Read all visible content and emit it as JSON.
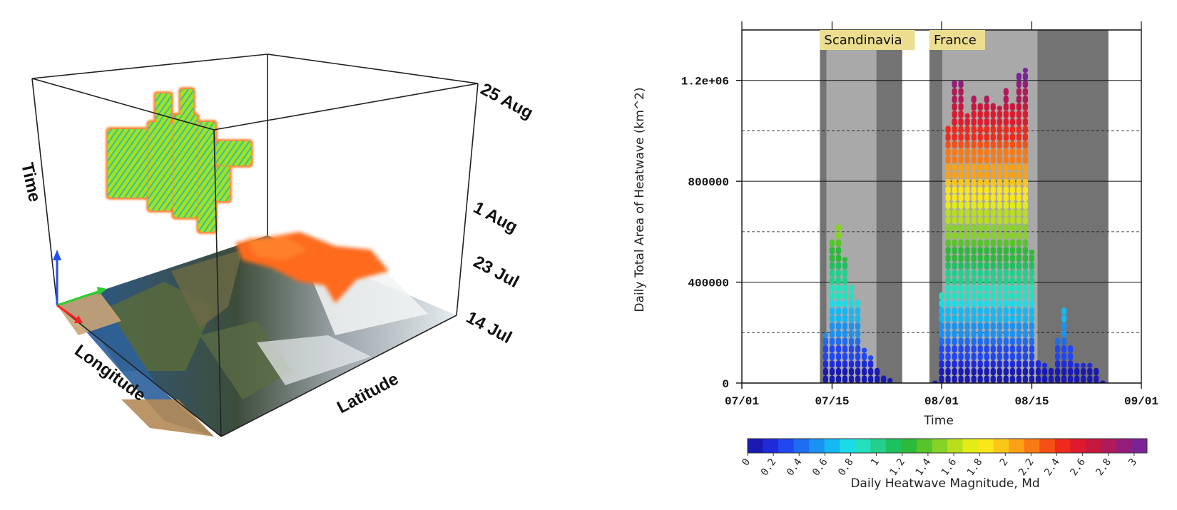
{
  "cube": {
    "axis_labels": {
      "time": "Time",
      "longitude": "Longitude",
      "latitude": "Latitude"
    },
    "time_ticks": [
      "25 Aug",
      "1 Aug",
      "23 Jul",
      "14 Jul"
    ]
  },
  "chart_data": {
    "type": "bar",
    "title": "",
    "xlabel": "Time",
    "ylabel": "Daily Total Area of Heatwave (km^2)",
    "x_tick_labels": [
      "07/01",
      "07/15",
      "08/01",
      "08/15",
      "09/01"
    ],
    "x_range": [
      "07/01",
      "09/01"
    ],
    "y_tick_labels": [
      "0",
      "400000",
      "800000",
      "1.2e+06"
    ],
    "ylim": [
      0,
      1400000
    ],
    "grid": "horizontal solid at 400000 intervals, dashed at 200000, 600000, 1000000",
    "regions": [
      {
        "name": "Scandinavia",
        "start": "07/14",
        "end": "07/25",
        "highlight": [
          "07/15",
          "07/21"
        ]
      },
      {
        "name": "France",
        "start": "07/31",
        "end": "08/26",
        "highlight": [
          "08/02",
          "08/15"
        ]
      }
    ],
    "days": [
      "07/14",
      "07/15",
      "07/16",
      "07/17",
      "07/18",
      "07/19",
      "07/20",
      "07/21",
      "07/22",
      "07/23",
      "07/24",
      "07/31",
      "08/01",
      "08/02",
      "08/03",
      "08/04",
      "08/05",
      "08/06",
      "08/07",
      "08/08",
      "08/09",
      "08/10",
      "08/11",
      "08/12",
      "08/13",
      "08/14",
      "08/15",
      "08/16",
      "08/17",
      "08/18",
      "08/19",
      "08/20",
      "08/21",
      "08/22",
      "08/23",
      "08/24",
      "08/25",
      "08/26"
    ],
    "values": [
      200000,
      570000,
      640000,
      500000,
      390000,
      340000,
      140000,
      110000,
      70000,
      40000,
      20000,
      10000,
      360000,
      1030000,
      1200000,
      1210000,
      1070000,
      1150000,
      1110000,
      1150000,
      1110000,
      1100000,
      1170000,
      1110000,
      1240000,
      1250000,
      530000,
      100000,
      80000,
      60000,
      190000,
      300000,
      150000,
      80000,
      80000,
      80000,
      60000,
      10000
    ],
    "colorbar": {
      "label": "Daily Heatwave Magnitude, Md",
      "ticks": [
        "0",
        "0.2",
        "0.4",
        "0.6",
        "0.8",
        "1",
        "1.2",
        "1.4",
        "1.6",
        "1.8",
        "2",
        "2.2",
        "2.4",
        "2.6",
        "2.8",
        "3"
      ],
      "range": [
        0,
        3.1
      ],
      "colors": [
        "#1a1ab3",
        "#1f2ad9",
        "#2047f0",
        "#1e6df0",
        "#1b92f2",
        "#14b8f2",
        "#1adce6",
        "#25e0bf",
        "#22d08c",
        "#1fc060",
        "#2cba3a",
        "#56c42a",
        "#86d226",
        "#b8de1e",
        "#e4ec16",
        "#fbe61a",
        "#fcc619",
        "#fba116",
        "#f97a14",
        "#f55114",
        "#ef2a1c",
        "#de1a2e",
        "#c8173e",
        "#b0195a",
        "#951c78",
        "#7a2397"
      ]
    }
  },
  "colors": {
    "region_dark": "#737373",
    "region_light": "#a9a9a9",
    "label_box": "#ecde8e",
    "blob_green": "#a6e01e",
    "blob_orange": "#ff6a1c"
  }
}
